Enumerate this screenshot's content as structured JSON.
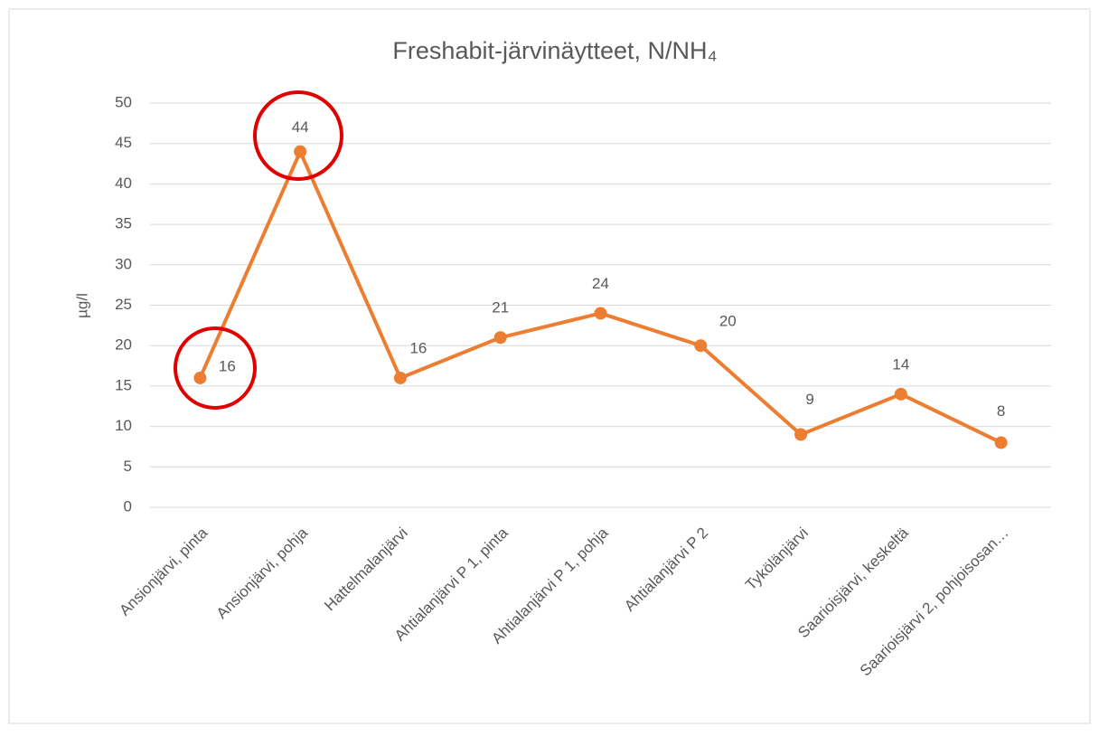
{
  "chart_data": {
    "type": "line",
    "title": "Freshabit-järvinäytteet, N/NH₄",
    "y_label": "µg/l",
    "categories": [
      "Ansionjärvi, pinta",
      "Ansionjärvi, pohja",
      "Hattelmalanjärvi",
      "Ahtialanjärvi P 1, pinta",
      "Ahtialanjärvi P 1, pohja",
      "Ahtialanjärvi P 2",
      "Tykölänjärvi",
      "Saarioisjärvi, keskeltä",
      "Saarioisjärvi 2, pohjoisosan…"
    ],
    "series": [
      {
        "name": "N/NH4",
        "color": "#ed7d31",
        "values": [
          16,
          44,
          16,
          21,
          24,
          20,
          9,
          14,
          8
        ]
      }
    ],
    "ylim": [
      0,
      50
    ],
    "yticks": [
      0,
      5,
      10,
      15,
      20,
      25,
      30,
      35,
      40,
      45,
      50
    ],
    "grid": true
  }
}
